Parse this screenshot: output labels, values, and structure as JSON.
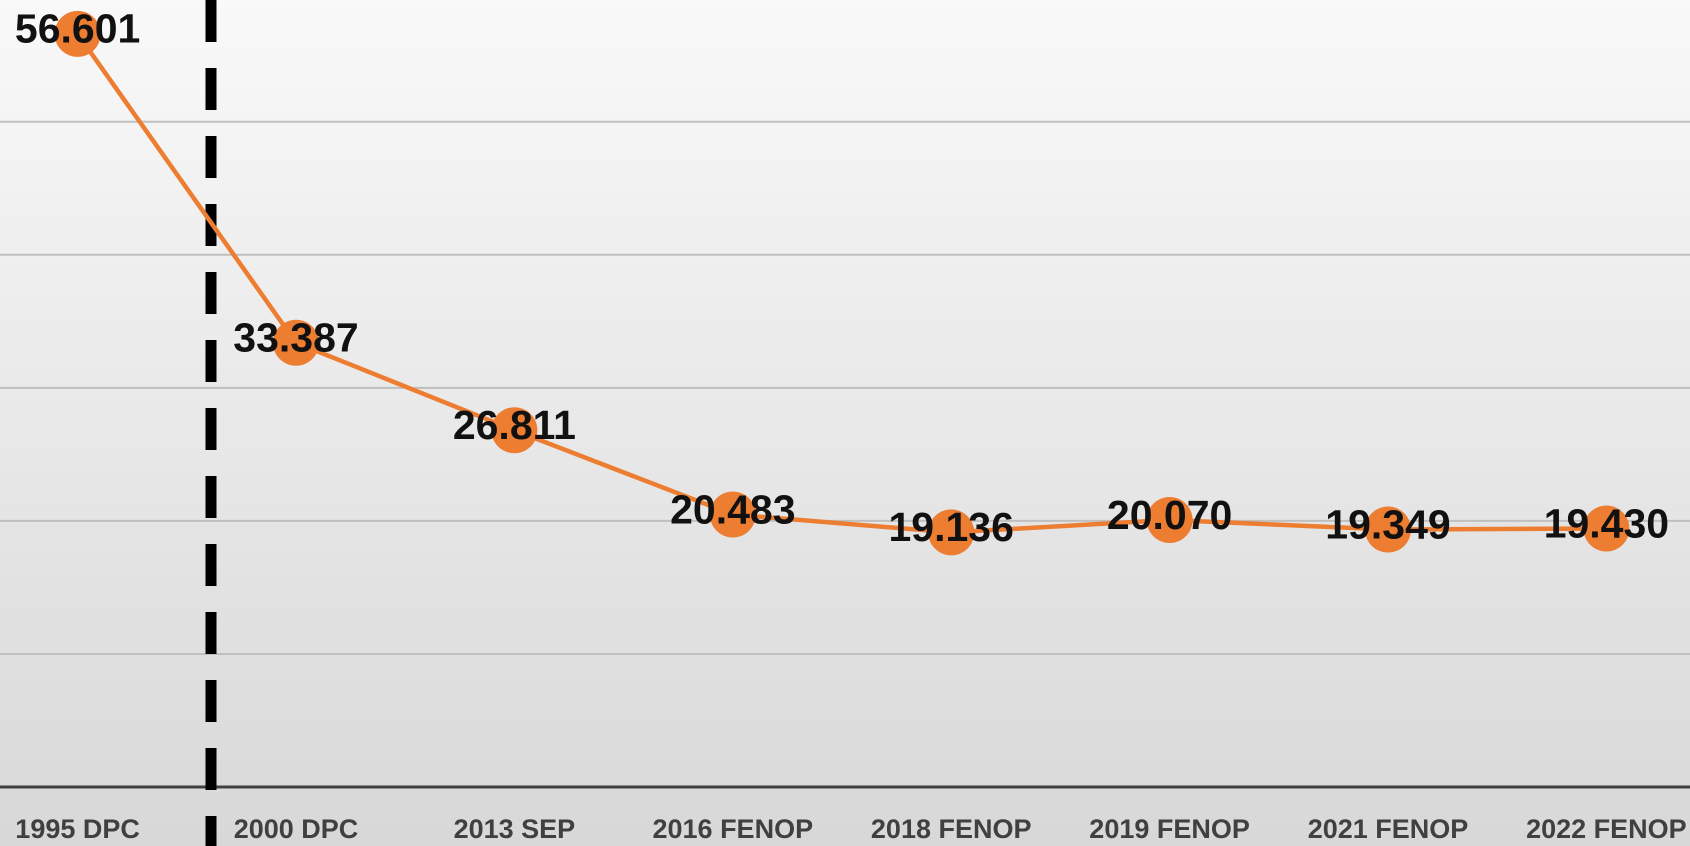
{
  "chart_data": {
    "type": "line",
    "categories": [
      "1995 DPC",
      "2000 DPC",
      "2013 SEP",
      "2016 FENOP",
      "2018 FENOP",
      "2019 FENOP",
      "2021 FENOP",
      "2022 FENOP"
    ],
    "series": [
      {
        "name": null,
        "color": "#ed7d31",
        "values": [
          56.601,
          33.387,
          26.811,
          20.483,
          19.136,
          20.07,
          19.349,
          19.43
        ],
        "value_labels": [
          "56.601",
          "33.387",
          "26.811",
          "20.483",
          "19.136",
          "20.070",
          "19.349",
          "19.430"
        ]
      }
    ],
    "ylim": [
      0,
      59
    ],
    "yticks": [
      0,
      10,
      20,
      30,
      40,
      50
    ],
    "grid": true
  }
}
